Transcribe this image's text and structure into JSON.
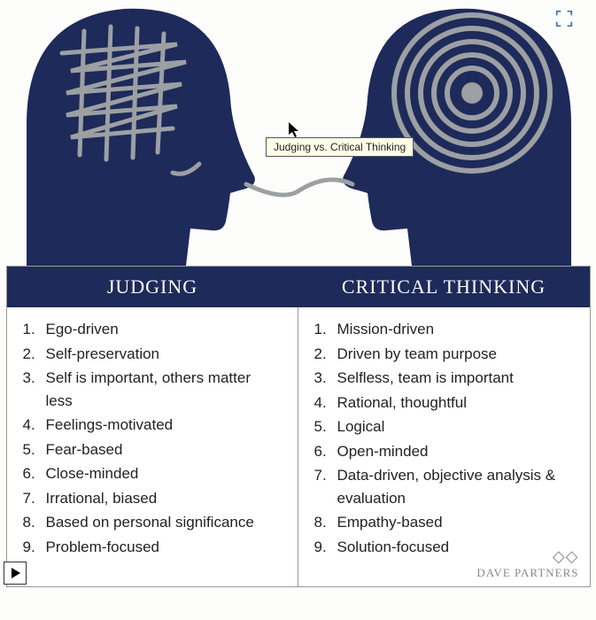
{
  "tooltip_text": "Judging vs. Critical Thinking",
  "headers": {
    "left": "JUDGING",
    "right": "CRITICAL THINKING"
  },
  "columns": {
    "left": [
      "Ego-driven",
      "Self-preservation",
      "Self is important, others matter less",
      "Feelings-motivated",
      "Fear-based",
      "Close-minded",
      "Irrational, biased",
      "Based on personal significance",
      "Problem-focused"
    ],
    "right": [
      "Mission-driven",
      "Driven by team purpose",
      "Selfless, team is important",
      "Rational, thoughtful",
      "Logical",
      "Open-minded",
      "Data-driven, objective analysis & evaluation",
      "Empathy-based",
      "Solution-focused"
    ]
  },
  "brand": "DAVE PARTNERS",
  "colors": {
    "navy": "#1e2a5a",
    "grey_line": "#9ca0a3",
    "bg": "#fdfdfb",
    "header_bg": "#1e2a5a",
    "header_text": "#ffffff",
    "body_text": "#222222",
    "border": "#999999",
    "tooltip_bg": "#fefee8",
    "brand_text": "#888888"
  },
  "chart": {
    "type": "infographic",
    "head_fill": "#1e2a5a",
    "connector_stroke": "#9ca0a3",
    "connector_width": 5,
    "spiral_stroke": "#9ca0a3",
    "spiral_width": 6,
    "scribble_stroke": "#9ca0a3",
    "scribble_width": 5
  },
  "fonts": {
    "header_family": "Georgia, serif",
    "header_size_pt": 18,
    "body_family": "Arial, Helvetica, sans-serif",
    "body_size_pt": 13,
    "brand_size_pt": 10
  }
}
